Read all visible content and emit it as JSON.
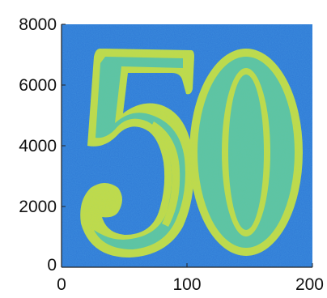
{
  "chart_data": {
    "type": "heatmap",
    "title": "",
    "xlabel": "",
    "ylabel": "",
    "xlim": [
      0,
      200
    ],
    "ylim": [
      0,
      8000
    ],
    "x_ticks": [
      "0",
      "100",
      "200"
    ],
    "y_ticks": [
      "0",
      "2000",
      "4000",
      "6000",
      "8000"
    ],
    "image_content": "50",
    "grid": false,
    "colors": {
      "background": "#2f79d6",
      "background_light": "#3a8fd8",
      "glyph_fill": "#5ec5a0",
      "glyph_outline": "#c2dc46",
      "glyph_highlight": "#dde34a"
    }
  }
}
